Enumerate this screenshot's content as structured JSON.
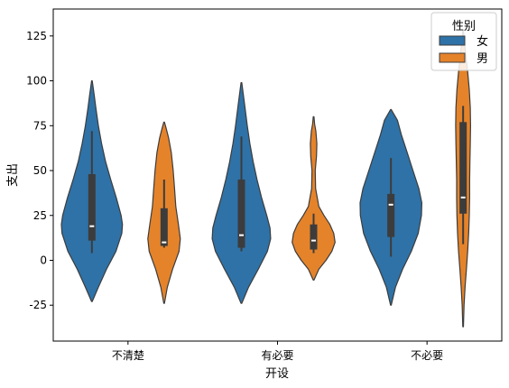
{
  "chart_data": {
    "type": "violin",
    "xlabel": "开设",
    "ylabel": "支出",
    "categories": [
      "不清楚",
      "有必要",
      "不必要"
    ],
    "ylim": [
      -45,
      140
    ],
    "yticks": [
      -25,
      0,
      25,
      50,
      75,
      100,
      125
    ],
    "grid": false,
    "legend": {
      "title": "性别",
      "placement": "top-right"
    },
    "series": [
      {
        "name": "女",
        "color": "#2e72a7",
        "violins": [
          {
            "category": "不清楚",
            "box": {
              "q1": 11,
              "median": 19,
              "q3": 48,
              "whisker_low": 4,
              "whisker_high": 72
            },
            "density": [
              [
                -23,
                0.01
              ],
              [
                -15,
                0.2
              ],
              [
                -5,
                0.45
              ],
              [
                5,
                0.74
              ],
              [
                15,
                0.92
              ],
              [
                20,
                0.94
              ],
              [
                25,
                0.9
              ],
              [
                35,
                0.75
              ],
              [
                45,
                0.58
              ],
              [
                55,
                0.42
              ],
              [
                65,
                0.3
              ],
              [
                75,
                0.2
              ],
              [
                85,
                0.12
              ],
              [
                92,
                0.07
              ],
              [
                100,
                0.01
              ]
            ]
          },
          {
            "category": "有必要",
            "box": {
              "q1": 7,
              "median": 14,
              "q3": 45,
              "whisker_low": 5,
              "whisker_high": 69
            },
            "density": [
              [
                -24,
                0.01
              ],
              [
                -15,
                0.22
              ],
              [
                -5,
                0.52
              ],
              [
                5,
                0.8
              ],
              [
                12,
                0.9
              ],
              [
                18,
                0.88
              ],
              [
                25,
                0.78
              ],
              [
                35,
                0.62
              ],
              [
                45,
                0.48
              ],
              [
                55,
                0.36
              ],
              [
                65,
                0.26
              ],
              [
                75,
                0.18
              ],
              [
                85,
                0.11
              ],
              [
                92,
                0.06
              ],
              [
                99,
                0.01
              ]
            ]
          },
          {
            "category": "不必要",
            "box": {
              "q1": 13,
              "median": 31,
              "q3": 37,
              "whisker_low": 2,
              "whisker_high": 57
            },
            "density": [
              [
                -25,
                0.01
              ],
              [
                -15,
                0.14
              ],
              [
                -5,
                0.36
              ],
              [
                5,
                0.63
              ],
              [
                15,
                0.84
              ],
              [
                25,
                0.94
              ],
              [
                32,
                0.95
              ],
              [
                40,
                0.86
              ],
              [
                50,
                0.68
              ],
              [
                60,
                0.5
              ],
              [
                70,
                0.32
              ],
              [
                78,
                0.2
              ],
              [
                84,
                0.01
              ]
            ]
          }
        ]
      },
      {
        "name": "男",
        "color": "#e5832a",
        "violins": [
          {
            "category": "不清楚",
            "box": {
              "q1": 8,
              "median": 10,
              "q3": 29,
              "whisker_low": 7,
              "whisker_high": 45
            },
            "density": [
              [
                -24,
                0.01
              ],
              [
                -15,
                0.1
              ],
              [
                -5,
                0.26
              ],
              [
                5,
                0.46
              ],
              [
                12,
                0.5
              ],
              [
                20,
                0.44
              ],
              [
                30,
                0.36
              ],
              [
                40,
                0.32
              ],
              [
                50,
                0.28
              ],
              [
                60,
                0.22
              ],
              [
                68,
                0.14
              ],
              [
                73,
                0.07
              ],
              [
                77,
                0.01
              ]
            ]
          },
          {
            "category": "有必要",
            "box": {
              "q1": 6,
              "median": 11,
              "q3": 20,
              "whisker_low": 4,
              "whisker_high": 26
            },
            "density": [
              [
                -11,
                0.01
              ],
              [
                -5,
                0.16
              ],
              [
                0,
                0.38
              ],
              [
                5,
                0.56
              ],
              [
                10,
                0.66
              ],
              [
                15,
                0.62
              ],
              [
                20,
                0.5
              ],
              [
                25,
                0.32
              ],
              [
                30,
                0.16
              ],
              [
                40,
                0.06
              ],
              [
                50,
                0.05
              ],
              [
                58,
                0.09
              ],
              [
                65,
                0.1
              ],
              [
                72,
                0.07
              ],
              [
                76,
                0.03
              ],
              [
                80,
                0.01
              ]
            ]
          },
          {
            "category": "不必要",
            "box": {
              "q1": 26,
              "median": 35,
              "q3": 77,
              "whisker_low": 9,
              "whisker_high": 86
            },
            "density": [
              [
                -37,
                0.01
              ],
              [
                -25,
                0.03
              ],
              [
                -15,
                0.06
              ],
              [
                -5,
                0.1
              ],
              [
                5,
                0.14
              ],
              [
                15,
                0.17
              ],
              [
                25,
                0.19
              ],
              [
                35,
                0.2
              ],
              [
                45,
                0.2
              ],
              [
                55,
                0.21
              ],
              [
                65,
                0.22
              ],
              [
                75,
                0.23
              ],
              [
                85,
                0.22
              ],
              [
                95,
                0.19
              ],
              [
                105,
                0.14
              ],
              [
                115,
                0.08
              ],
              [
                122,
                0.04
              ],
              [
                128,
                0.01
              ]
            ]
          }
        ]
      }
    ]
  }
}
